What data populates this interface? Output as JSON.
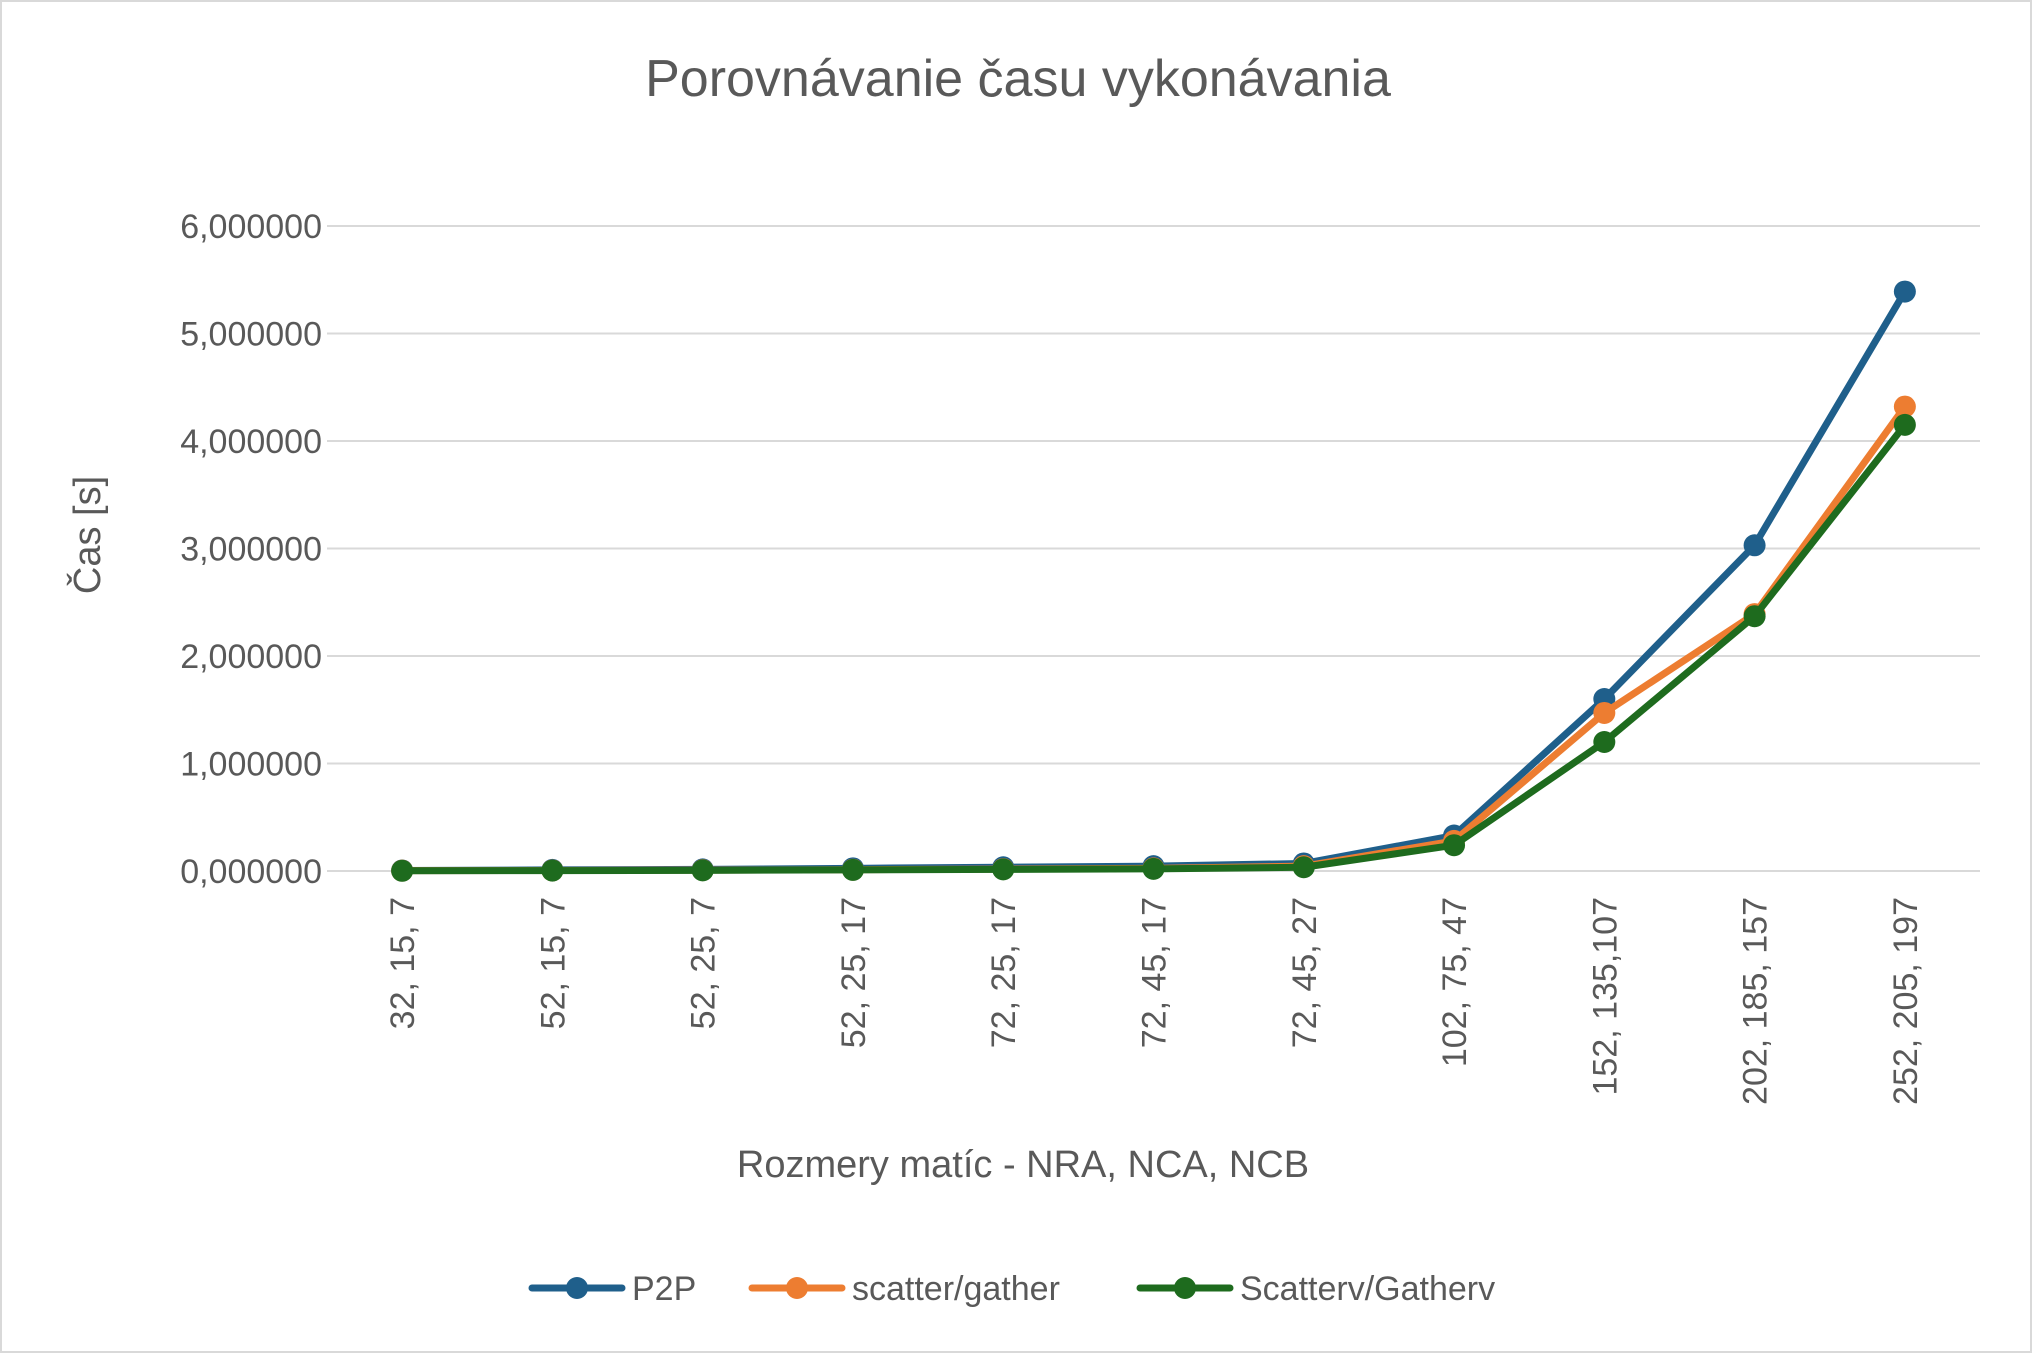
{
  "chart_data": {
    "type": "line",
    "title": "Porovnávanie času vykonávania",
    "xlabel": "Rozmery matíc - NRA, NCA, NCB",
    "ylabel": "Čas [s]",
    "ylim": [
      0,
      6
    ],
    "yticks": [
      "0,000000",
      "1,000000",
      "2,000000",
      "3,000000",
      "4,000000",
      "5,000000",
      "6,000000"
    ],
    "grid": true,
    "legend_position": "bottom",
    "categories": [
      "32, 15, 7",
      "52, 15, 7",
      "52, 25, 7",
      "52, 25, 17",
      "72, 25, 17",
      "72, 45, 17",
      "72, 45, 27",
      "102, 75, 47",
      "152, 135,107",
      "202, 185, 157",
      "252, 205, 197"
    ],
    "series": [
      {
        "name": "P2P",
        "color": "#1f5f8b",
        "values": [
          0.005,
          0.01,
          0.015,
          0.025,
          0.035,
          0.045,
          0.07,
          0.33,
          1.6,
          3.03,
          5.39
        ]
      },
      {
        "name": "scatter/gather",
        "color": "#ed7d31",
        "values": [
          0.003,
          0.005,
          0.008,
          0.012,
          0.018,
          0.025,
          0.045,
          0.28,
          1.47,
          2.39,
          4.32
        ]
      },
      {
        "name": "Scatterv/Gatherv",
        "color": "#1e6b1e",
        "values": [
          0.002,
          0.004,
          0.006,
          0.01,
          0.015,
          0.02,
          0.035,
          0.24,
          1.2,
          2.37,
          4.15
        ]
      }
    ]
  }
}
